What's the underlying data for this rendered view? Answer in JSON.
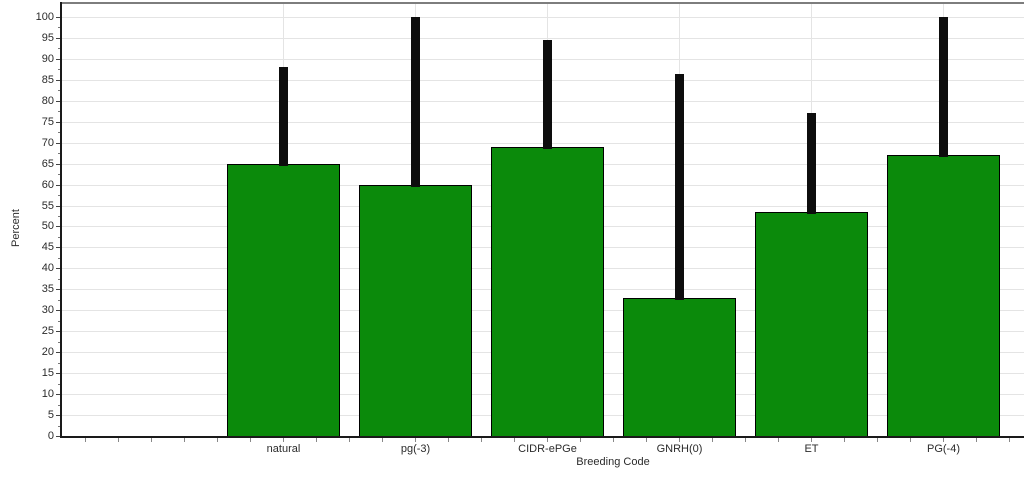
{
  "chart": {
    "ylabel": "Percent",
    "xlabel": "Breeding Code",
    "colors": {
      "bar_fill": "#0b8a0b",
      "bar_border": "#000000",
      "error_bar": "#0d0d0d",
      "grid": "#e4e4e4",
      "axis": "#1a1a1a",
      "top_border": "#7d7d7d",
      "text": "#2b2b2b",
      "background": "#ffffff"
    }
  },
  "chart_data": {
    "type": "bar",
    "categories": [
      "natural",
      "pg(-3)",
      "CIDR-ePGe",
      "GNRH(0)",
      "ET",
      "PG(-4)"
    ],
    "values": [
      65,
      60,
      69,
      33,
      53.5,
      67
    ],
    "error_bar_tops": [
      88,
      100,
      94.5,
      86.5,
      77,
      100
    ],
    "title": "",
    "xlabel": "Breeding Code",
    "ylabel": "Percent",
    "ylim": [
      0,
      100
    ],
    "ytick_step": 5,
    "ytick_minor_step": 2.5,
    "grid": "horizontal-major + vertical-at-category-centers",
    "legend": "none",
    "bar_color": "#0b8a0b",
    "error_bar_color": "#0d0d0d"
  }
}
